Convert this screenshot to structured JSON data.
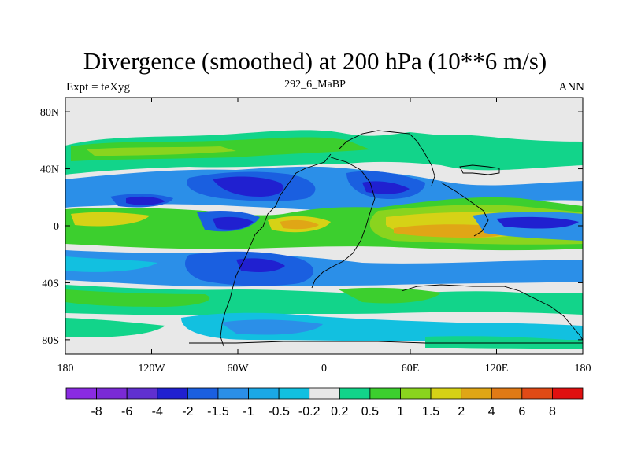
{
  "title": "Divergence (smoothed) at 200 hPa (10**6 m/s)",
  "left_label": "Expt = teXyg",
  "center_label": "292_6_MaBP",
  "right_label": "ANN",
  "y_ticks": [
    {
      "lat": 80,
      "label": "80N"
    },
    {
      "lat": 40,
      "label": "40N"
    },
    {
      "lat": 0,
      "label": "0"
    },
    {
      "lat": -40,
      "label": "40S"
    },
    {
      "lat": -80,
      "label": "80S"
    }
  ],
  "x_ticks": [
    {
      "lon": -180,
      "label": "180"
    },
    {
      "lon": -120,
      "label": "120W"
    },
    {
      "lon": -60,
      "label": "60W"
    },
    {
      "lon": 0,
      "label": "0"
    },
    {
      "lon": 60,
      "label": "60E"
    },
    {
      "lon": 120,
      "label": "120E"
    },
    {
      "lon": 180,
      "label": "180"
    }
  ],
  "colorbar": {
    "colors": [
      "#8a2be2",
      "#7a2ad6",
      "#6030d0",
      "#2020d0",
      "#1a5fe0",
      "#2b8fe8",
      "#1aa8e6",
      "#12c0e0",
      "#e8e8e8",
      "#12d48a",
      "#3ccf2e",
      "#8ad41e",
      "#d6d216",
      "#e0a616",
      "#e07a16",
      "#e04a16",
      "#e01010"
    ],
    "labels": [
      "-8",
      "-6",
      "-4",
      "-2",
      "-1.5",
      "-1",
      "-0.5",
      "-0.2",
      "0.2",
      "0.5",
      "1",
      "1.5",
      "2",
      "4",
      "6",
      "8"
    ]
  }
}
